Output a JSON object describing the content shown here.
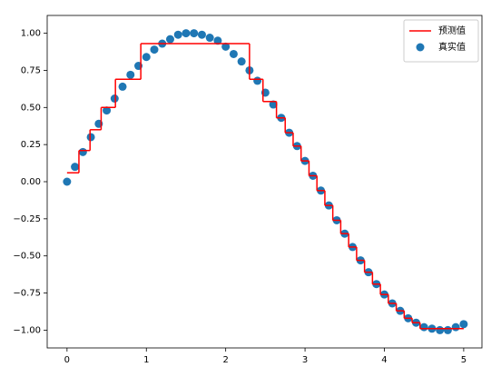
{
  "chart_data": {
    "type": "scatter",
    "xlim": [
      -0.25,
      5.23
    ],
    "ylim": [
      -1.12,
      1.12
    ],
    "xticks": [
      0,
      1,
      2,
      3,
      4,
      5
    ],
    "yticks": [
      {
        "value": -1,
        "label": "−1.00"
      },
      {
        "value": -0.75,
        "label": "−0.75"
      },
      {
        "value": -0.5,
        "label": "−0.50"
      },
      {
        "value": -0.25,
        "label": "−0.25"
      },
      {
        "value": 0,
        "label": "0.00"
      },
      {
        "value": 0.25,
        "label": "0.25"
      },
      {
        "value": 0.5,
        "label": "0.50"
      },
      {
        "value": 0.75,
        "label": "0.75"
      },
      {
        "value": 1,
        "label": "1.00"
      }
    ],
    "legend": "upper right",
    "series": [
      {
        "name": "预测值",
        "type": "step",
        "color": "#ff0000",
        "x": [
          0,
          0.15,
          0.29,
          0.43,
          0.61,
          0.93,
          2.3,
          2.47,
          2.64,
          2.75,
          2.85,
          2.95,
          3.05,
          3.15,
          3.25,
          3.35,
          3.45,
          3.55,
          3.65,
          3.75,
          3.85,
          3.95,
          4.05,
          4.15,
          4.25,
          4.35,
          4.45,
          5.0
        ],
        "values": [
          0.06,
          0.21,
          0.35,
          0.5,
          0.69,
          0.93,
          0.69,
          0.54,
          0.43,
          0.33,
          0.24,
          0.14,
          0.04,
          -0.06,
          -0.16,
          -0.26,
          -0.35,
          -0.44,
          -0.53,
          -0.61,
          -0.69,
          -0.76,
          -0.82,
          -0.87,
          -0.92,
          -0.95,
          -0.99,
          -0.99
        ]
      },
      {
        "name": "真实值",
        "type": "scatter",
        "color": "#1f77b4",
        "x": [
          0,
          0.1,
          0.2,
          0.3,
          0.4,
          0.5,
          0.6,
          0.7,
          0.8,
          0.9,
          1.0,
          1.1,
          1.2,
          1.3,
          1.4,
          1.5,
          1.6,
          1.7,
          1.8,
          1.9,
          2.0,
          2.1,
          2.2,
          2.3,
          2.4,
          2.5,
          2.6,
          2.7,
          2.8,
          2.9,
          3.0,
          3.1,
          3.2,
          3.3,
          3.4,
          3.5,
          3.6,
          3.7,
          3.8,
          3.9,
          4.0,
          4.1,
          4.2,
          4.3,
          4.4,
          4.5,
          4.6,
          4.7,
          4.8,
          4.9,
          5.0
        ],
        "values": [
          0,
          0.1,
          0.2,
          0.3,
          0.39,
          0.48,
          0.56,
          0.64,
          0.72,
          0.78,
          0.84,
          0.89,
          0.93,
          0.96,
          0.99,
          1.0,
          1.0,
          0.99,
          0.97,
          0.95,
          0.91,
          0.86,
          0.81,
          0.75,
          0.68,
          0.6,
          0.52,
          0.43,
          0.33,
          0.24,
          0.14,
          0.04,
          -0.06,
          -0.16,
          -0.26,
          -0.35,
          -0.44,
          -0.53,
          -0.61,
          -0.69,
          -0.76,
          -0.82,
          -0.87,
          -0.92,
          -0.95,
          -0.98,
          -0.99,
          -1.0,
          -1.0,
          -0.98,
          -0.96
        ]
      }
    ]
  }
}
